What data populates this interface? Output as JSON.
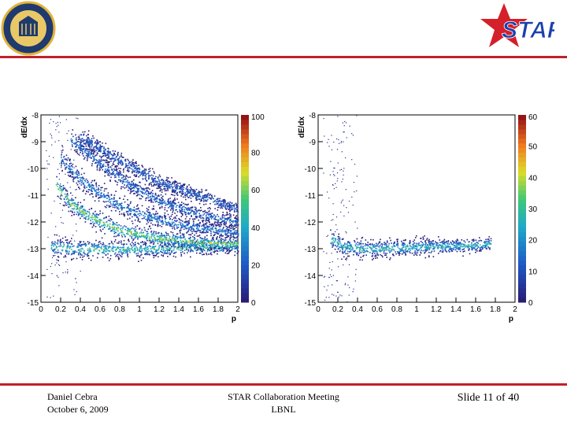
{
  "colors": {
    "accent": "#c0202a",
    "star": "#d4202a",
    "star_text": "#1c3fae"
  },
  "logos": {
    "left_seal": "university-seal",
    "right_logo": "STAR"
  },
  "footer": {
    "author": "Daniel Cebra",
    "date": "October 6, 2009",
    "meeting": "STAR Collaboration Meeting",
    "location": "LBNL",
    "slide": "Slide 11 of 40"
  },
  "chart_data": [
    {
      "type": "heatmap",
      "panel": "left",
      "xlabel": "p",
      "ylabel": "dE/dx",
      "xlim": [
        0,
        2
      ],
      "ylim": [
        -15,
        -8
      ],
      "xticks": [
        "0",
        "0.2",
        "0.4",
        "0.6",
        "0.8",
        "1",
        "1.2",
        "1.4",
        "1.6",
        "1.8",
        "2"
      ],
      "yticks": [
        "-8",
        "-9",
        "-10",
        "-11",
        "-12",
        "-13",
        "-14",
        "-15"
      ],
      "zlim": [
        0,
        100
      ],
      "zticks": [
        "0",
        "20",
        "40",
        "60",
        "80",
        "100"
      ],
      "bands": [
        {
          "name": "baseline",
          "points": [
            [
              0.1,
              -12.9
            ],
            [
              0.3,
              -13.0
            ],
            [
              0.6,
              -13.0
            ],
            [
              1.0,
              -13.0
            ],
            [
              1.5,
              -12.95
            ],
            [
              2.0,
              -12.9
            ]
          ],
          "intensity": 0.6
        },
        {
          "name": "band-1",
          "points": [
            [
              0.15,
              -10.6
            ],
            [
              0.3,
              -11.3
            ],
            [
              0.5,
              -11.8
            ],
            [
              0.8,
              -12.3
            ],
            [
              1.2,
              -12.6
            ],
            [
              1.6,
              -12.75
            ],
            [
              2.0,
              -12.8
            ]
          ],
          "intensity": 0.75
        },
        {
          "name": "band-2",
          "points": [
            [
              0.2,
              -9.6
            ],
            [
              0.4,
              -10.4
            ],
            [
              0.7,
              -11.2
            ],
            [
              1.0,
              -11.7
            ],
            [
              1.4,
              -12.1
            ],
            [
              2.0,
              -12.4
            ]
          ],
          "intensity": 0.35
        },
        {
          "name": "band-3",
          "points": [
            [
              0.3,
              -8.9
            ],
            [
              0.6,
              -9.8
            ],
            [
              0.9,
              -10.6
            ],
            [
              1.2,
              -11.2
            ],
            [
              1.6,
              -11.7
            ],
            [
              2.0,
              -12.0
            ]
          ],
          "intensity": 0.3
        },
        {
          "name": "band-4",
          "points": [
            [
              0.4,
              -8.8
            ],
            [
              0.8,
              -9.7
            ],
            [
              1.2,
              -10.5
            ],
            [
              1.6,
              -11.0
            ],
            [
              2.0,
              -11.5
            ]
          ],
          "intensity": 0.25
        }
      ]
    },
    {
      "type": "heatmap",
      "panel": "right",
      "xlabel": "p",
      "ylabel": "dE/dx",
      "xlim": [
        0,
        2
      ],
      "ylim": [
        -15,
        -8
      ],
      "xticks": [
        "0",
        "0.2",
        "0.4",
        "0.6",
        "0.8",
        "1",
        "1.2",
        "1.4",
        "1.6",
        "1.8",
        "2"
      ],
      "yticks": [
        "-8",
        "-9",
        "-10",
        "-11",
        "-12",
        "-13",
        "-14",
        "-15"
      ],
      "zlim": [
        0,
        60
      ],
      "zticks": [
        "0",
        "10",
        "20",
        "30",
        "40",
        "50",
        "60"
      ],
      "bands": [
        {
          "name": "baseline",
          "points": [
            [
              0.12,
              -12.6
            ],
            [
              0.25,
              -12.9
            ],
            [
              0.5,
              -13.0
            ],
            [
              0.8,
              -12.95
            ],
            [
              1.2,
              -12.9
            ],
            [
              1.6,
              -12.85
            ],
            [
              1.75,
              -12.8
            ]
          ],
          "intensity": 0.55
        }
      ]
    }
  ]
}
